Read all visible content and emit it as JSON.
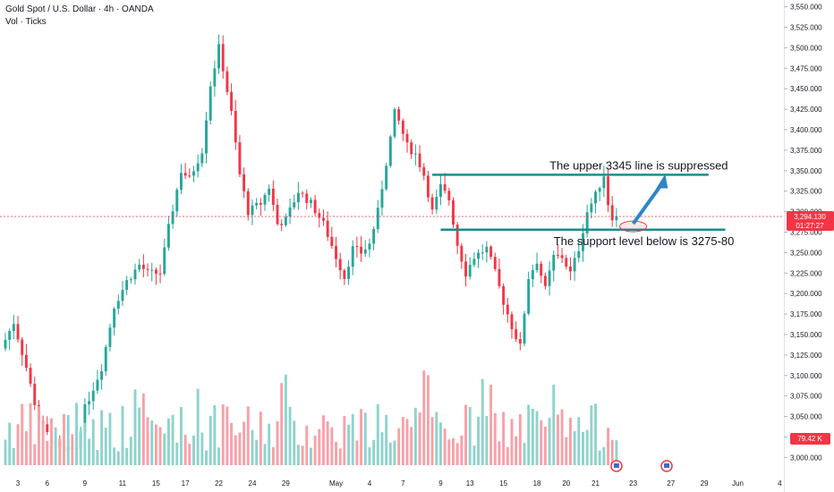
{
  "header": {
    "title": "Gold Spot / U.S. Dollar · 4h · OANDA",
    "subtitle": "Vol · Ticks"
  },
  "price_tag": {
    "value": "3,294.130",
    "countdown": "01:27:27",
    "color": "#f23645"
  },
  "volume_tag": {
    "value": "79.42 K",
    "color": "#f23645"
  },
  "colors": {
    "up": "#26a69a",
    "down": "#f23645",
    "vol_up": "#8fd3cc",
    "vol_down": "#f7a1a8",
    "line": "#1b8c8c",
    "arrow": "#2e86c8"
  },
  "annotations": {
    "upper": "The upper 3345 line is suppressed",
    "lower": "The support level below is 3275-80"
  },
  "chart_data": {
    "type": "candlestick",
    "symbol": "Gold Spot / U.S. Dollar",
    "interval": "4h",
    "ylim": [
      2995,
      3555
    ],
    "y_ticks": [
      3000,
      3025,
      3050,
      3075,
      3100,
      3125,
      3150,
      3175,
      3200,
      3225,
      3250,
      3275,
      3300,
      3325,
      3350,
      3375,
      3400,
      3425,
      3450,
      3475,
      3500,
      3525,
      3550
    ],
    "y_tick_labels": [
      "3,000.000",
      "3,025.000",
      "3,050.000",
      "3,075.000",
      "3,100.000",
      "3,125.000",
      "3,150.000",
      "3,175.000",
      "3,200.000",
      "3,225.000",
      "3,250.000",
      "3,275.000",
      "3,300.000",
      "3,325.000",
      "3,350.000",
      "3,375.000",
      "3,400.000",
      "3,425.000",
      "3,450.000",
      "3,475.000",
      "3,500.000",
      "3,525.000",
      "3,550.000"
    ],
    "x_labels": [
      {
        "label": "3",
        "idx": 3
      },
      {
        "label": "6",
        "idx": 10
      },
      {
        "label": "9",
        "idx": 19
      },
      {
        "label": "11",
        "idx": 28
      },
      {
        "label": "15",
        "idx": 36
      },
      {
        "label": "17",
        "idx": 43
      },
      {
        "label": "22",
        "idx": 51
      },
      {
        "label": "24",
        "idx": 59
      },
      {
        "label": "29",
        "idx": 67
      },
      {
        "label": "May",
        "idx": 79
      },
      {
        "label": "4",
        "idx": 87
      },
      {
        "label": "7",
        "idx": 95
      },
      {
        "label": "9",
        "idx": 104
      },
      {
        "label": "13",
        "idx": 111
      },
      {
        "label": "15",
        "idx": 119
      },
      {
        "label": "18",
        "idx": 127
      },
      {
        "label": "20",
        "idx": 134
      },
      {
        "label": "21",
        "idx": 141
      },
      {
        "label": "23",
        "idx": 150
      },
      {
        "label": "27",
        "idx": 159
      },
      {
        "label": "29",
        "idx": 167
      },
      {
        "label": "Jun",
        "idx": 175
      },
      {
        "label": "4",
        "idx": 185
      }
    ],
    "anchors": [
      [
        0,
        3133
      ],
      [
        3,
        3165
      ],
      [
        6,
        3110
      ],
      [
        9,
        3045
      ],
      [
        12,
        3020
      ],
      [
        15,
        3005
      ],
      [
        18,
        3012
      ],
      [
        20,
        3060
      ],
      [
        24,
        3110
      ],
      [
        27,
        3185
      ],
      [
        30,
        3215
      ],
      [
        33,
        3235
      ],
      [
        35,
        3225
      ],
      [
        38,
        3225
      ],
      [
        40,
        3280
      ],
      [
        43,
        3350
      ],
      [
        45,
        3340
      ],
      [
        48,
        3375
      ],
      [
        50,
        3455
      ],
      [
        52,
        3500
      ],
      [
        53,
        3475
      ],
      [
        55,
        3420
      ],
      [
        57,
        3345
      ],
      [
        59,
        3300
      ],
      [
        62,
        3310
      ],
      [
        64,
        3330
      ],
      [
        66,
        3285
      ],
      [
        68,
        3290
      ],
      [
        71,
        3325
      ],
      [
        74,
        3310
      ],
      [
        77,
        3285
      ],
      [
        80,
        3245
      ],
      [
        82,
        3220
      ],
      [
        84,
        3255
      ],
      [
        86,
        3250
      ],
      [
        88,
        3260
      ],
      [
        90,
        3300
      ],
      [
        92,
        3360
      ],
      [
        94,
        3420
      ],
      [
        95,
        3410
      ],
      [
        97,
        3380
      ],
      [
        99,
        3370
      ],
      [
        101,
        3345
      ],
      [
        103,
        3300
      ],
      [
        105,
        3330
      ],
      [
        107,
        3315
      ],
      [
        109,
        3260
      ],
      [
        111,
        3225
      ],
      [
        113,
        3245
      ],
      [
        116,
        3255
      ],
      [
        118,
        3225
      ],
      [
        120,
        3190
      ],
      [
        122,
        3160
      ],
      [
        124,
        3135
      ],
      [
        126,
        3220
      ],
      [
        128,
        3240
      ],
      [
        130,
        3205
      ],
      [
        132,
        3245
      ],
      [
        134,
        3245
      ],
      [
        136,
        3225
      ],
      [
        138,
        3255
      ],
      [
        140,
        3300
      ],
      [
        142,
        3320
      ],
      [
        144,
        3345
      ],
      [
        145,
        3310
      ],
      [
        146,
        3294
      ]
    ],
    "x_range": [
      0,
      186
    ],
    "levels": [
      {
        "value": 3345,
        "label": "The upper 3345 line is suppressed",
        "from": 102,
        "to": 168
      },
      {
        "value": 3278,
        "label": "The support level below is 3275-80",
        "from": 104,
        "to": 172
      }
    ],
    "last_price": 3294.13,
    "volume_last": "79.42 K"
  }
}
